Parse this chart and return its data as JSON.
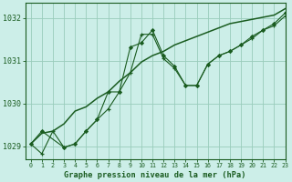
{
  "title": "Graphe pression niveau de la mer (hPa)",
  "bg_color": "#cceee8",
  "grid_color": "#99ccbb",
  "line_color": "#1a5c20",
  "xlim": [
    -0.5,
    23
  ],
  "ylim": [
    1028.7,
    1032.35
  ],
  "yticks": [
    1029,
    1030,
    1031,
    1032
  ],
  "xticks": [
    0,
    1,
    2,
    3,
    4,
    5,
    6,
    7,
    8,
    9,
    10,
    11,
    12,
    13,
    14,
    15,
    16,
    17,
    18,
    19,
    20,
    21,
    22,
    23
  ],
  "series1_x": [
    0,
    1,
    2,
    3,
    4,
    5,
    6,
    7,
    8,
    9,
    10,
    11,
    12,
    13,
    14,
    15,
    16,
    17,
    18,
    19,
    20,
    21,
    22,
    23
  ],
  "series1_y": [
    1029.05,
    1028.82,
    1029.35,
    1028.97,
    1029.05,
    1029.35,
    1029.62,
    1029.87,
    1030.27,
    1030.72,
    1031.62,
    1031.62,
    1031.05,
    1030.82,
    1030.42,
    1030.42,
    1030.92,
    1031.12,
    1031.22,
    1031.37,
    1031.52,
    1031.72,
    1031.82,
    1032.05
  ],
  "series2_x": [
    0,
    1,
    3,
    4,
    5,
    6,
    7,
    8,
    9,
    10,
    11,
    12,
    13,
    14,
    15,
    16,
    17,
    18,
    19,
    20,
    21,
    22,
    23
  ],
  "series2_y": [
    1029.05,
    1029.35,
    1028.97,
    1029.05,
    1029.35,
    1029.62,
    1030.27,
    1030.27,
    1031.32,
    1031.42,
    1031.72,
    1031.12,
    1030.87,
    1030.42,
    1030.42,
    1030.92,
    1031.12,
    1031.22,
    1031.37,
    1031.57,
    1031.72,
    1031.87,
    1032.12
  ],
  "series3_x": [
    0,
    1,
    2,
    3,
    4,
    5,
    6,
    7,
    8,
    9,
    10,
    11,
    12,
    13,
    14,
    15,
    16,
    17,
    18,
    19,
    20,
    21,
    22,
    23
  ],
  "series3_y": [
    1029.05,
    1029.3,
    1029.35,
    1029.52,
    1029.82,
    1029.92,
    1030.12,
    1030.27,
    1030.52,
    1030.72,
    1030.97,
    1031.12,
    1031.22,
    1031.37,
    1031.47,
    1031.57,
    1031.67,
    1031.77,
    1031.87,
    1031.92,
    1031.97,
    1032.02,
    1032.07,
    1032.22
  ]
}
